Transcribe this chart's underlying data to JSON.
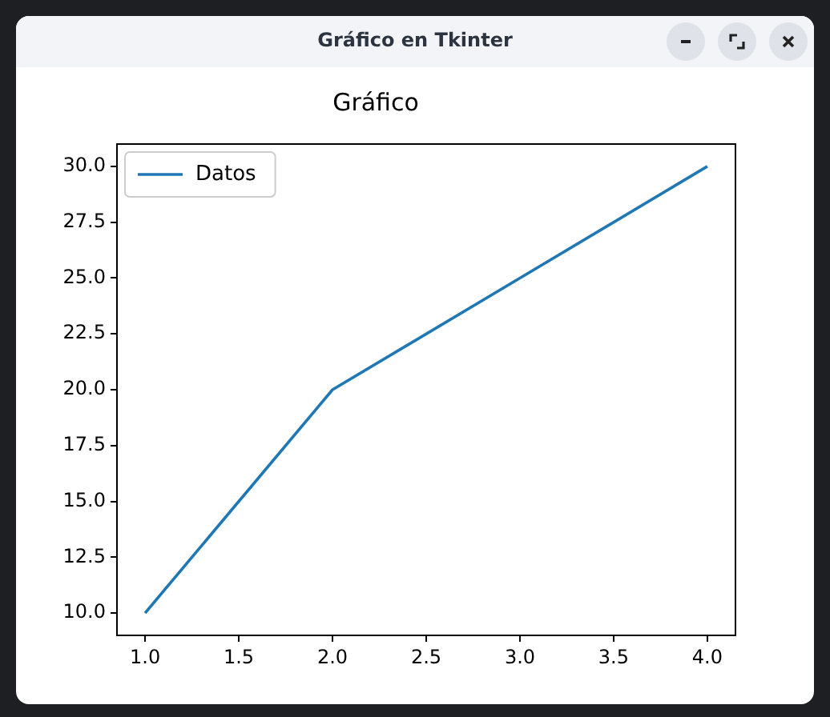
{
  "chart_data": {
    "type": "line",
    "title": "Gráfico",
    "annotations": [
      "Gráfico en Tkinter"
    ],
    "x": [
      1,
      2,
      3,
      4
    ],
    "series": [
      {
        "name": "Datos",
        "color": "#1f77b4",
        "values": [
          10,
          20,
          25,
          30
        ]
      }
    ],
    "xlim": [
      0.85,
      4.15
    ],
    "xticks": [
      {
        "value": 1,
        "label": "1.0"
      },
      {
        "value": 1.5,
        "label": "1.5"
      },
      {
        "value": 2,
        "label": "2.0"
      },
      {
        "value": 2.5,
        "label": "2.5"
      },
      {
        "value": 3,
        "label": "3.0"
      },
      {
        "value": 3.5,
        "label": "3.5"
      },
      {
        "value": 4,
        "label": "4.0"
      }
    ],
    "ylim": [
      9,
      31
    ],
    "yticks": [
      {
        "value": 10,
        "label": "10.0"
      },
      {
        "value": 12.5,
        "label": "12.5"
      },
      {
        "value": 15,
        "label": "15.0"
      },
      {
        "value": 17.5,
        "label": "17.5"
      },
      {
        "value": 20,
        "label": "20.0"
      },
      {
        "value": 22.5,
        "label": "22.5"
      },
      {
        "value": 25,
        "label": "25.0"
      },
      {
        "value": 27.5,
        "label": "27.5"
      },
      {
        "value": 30,
        "label": "30.0"
      }
    ],
    "grid": false,
    "legend": "top left",
    "marker": "none",
    "line_style": "solid"
  }
}
